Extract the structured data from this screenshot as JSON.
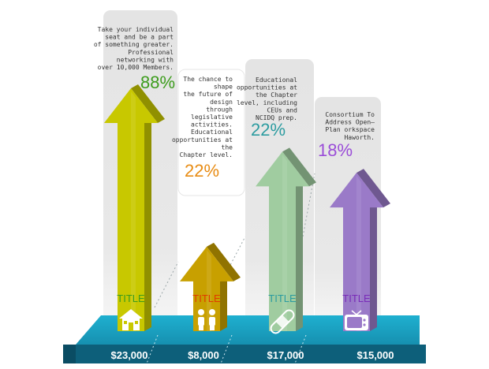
{
  "chart_data": {
    "type": "bar",
    "categories": [
      "TITLE",
      "TITLE",
      "TITLE",
      "TITLE"
    ],
    "values": [
      23000,
      8000,
      17000,
      15000
    ],
    "value_labels": [
      "$23,000",
      "$8,000",
      "$17,000",
      "$15,000"
    ],
    "percentages": [
      "88%",
      "22%",
      "22%",
      "18%"
    ],
    "descriptions": [
      [
        "Take your individual",
        "seat and be a part",
        "of something greater.",
        "Professional",
        "networking with",
        "over 10,000 Members."
      ],
      [
        "The chance to",
        "shape",
        "the future of",
        "design",
        "through",
        "legislative",
        "activities.",
        "Educational",
        "opportunities at",
        "the",
        "Chapter level."
      ],
      [
        "Educational",
        "opportunities at",
        "the Chapter",
        "level, including",
        "CEUs and",
        "NCIDQ prep."
      ],
      [
        "Consortium To",
        "Address Open–",
        "Plan orkspace",
        "Haworth."
      ]
    ],
    "icons": [
      "house-icon",
      "people-icon",
      "bandage-icon",
      "tv-icon"
    ],
    "colors": [
      "#c8c800",
      "#c8a000",
      "#a0cca0",
      "#9a7ac8"
    ],
    "percent_colors": [
      "#3c9c1c",
      "#e88c14",
      "#2c9ca0",
      "#9a4cd8"
    ],
    "title_colors": [
      "#3c9c1c",
      "#e03c00",
      "#2c9ca0",
      "#7a2cb8"
    ],
    "platform_color": "#1aa0c0",
    "legend": "none",
    "grid": false
  }
}
